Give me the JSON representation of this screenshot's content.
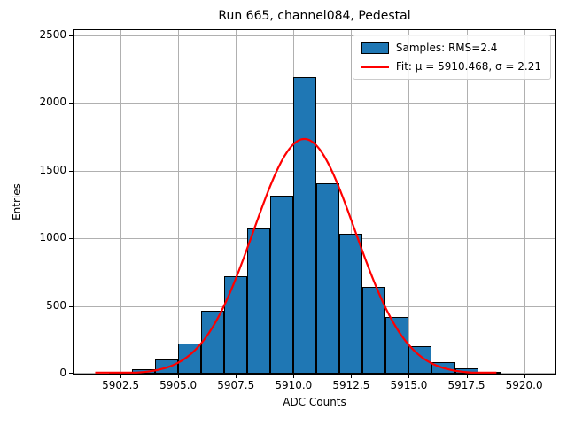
{
  "figure": {
    "title": "Run 665, channel084, Pedestal",
    "xlabel": "ADC Counts",
    "ylabel": "Entries"
  },
  "legend": {
    "entries": [
      {
        "swatch": "histogram-patch",
        "label": "Samples: RMS=2.4"
      },
      {
        "swatch": "fit-line",
        "label": "Fit: μ = 5910.468, σ = 2.21"
      }
    ],
    "position": "upper right"
  },
  "colors": {
    "bar_fill": "#1f77b4",
    "bar_edge": "#000000",
    "fit_line": "#ff0000",
    "grid": "#b0b0b0",
    "background": "#ffffff",
    "text": "#000000"
  },
  "chart_data": {
    "type": "bar",
    "subtype": "histogram",
    "title": "Run 665, channel084, Pedestal",
    "xlabel": "ADC Counts",
    "ylabel": "Entries",
    "bin_left_edges": [
      5902,
      5903,
      5904,
      5905,
      5906,
      5907,
      5908,
      5909,
      5910,
      5911,
      5912,
      5913,
      5914,
      5915,
      5916,
      5917,
      5918
    ],
    "bin_width": 1,
    "counts": [
      10,
      35,
      105,
      220,
      465,
      720,
      1075,
      1315,
      2190,
      1405,
      1035,
      640,
      420,
      200,
      85,
      40,
      10
    ],
    "series_name": "Samples: RMS=2.4",
    "rms": 2.4,
    "fit": {
      "name": "Fit",
      "mu": 5910.468,
      "sigma": 2.21,
      "peak": 1735,
      "x_start": 5901.4,
      "x_end": 5918.8
    },
    "xticks": [
      5902.5,
      5905.0,
      5907.5,
      5910.0,
      5912.5,
      5915.0,
      5917.5,
      5920.0
    ],
    "xtick_labels": [
      "5902.5",
      "5905.0",
      "5907.5",
      "5910.0",
      "5912.5",
      "5915.0",
      "5917.5",
      "5920.0"
    ],
    "yticks": [
      0,
      500,
      1000,
      1500,
      2000,
      2500
    ],
    "ytick_labels": [
      "0",
      "500",
      "1000",
      "1500",
      "2000",
      "2500"
    ],
    "xlim": [
      5900.46,
      5921.36
    ],
    "ylim": [
      0,
      2540
    ],
    "grid": true,
    "legend_position": "upper right"
  }
}
